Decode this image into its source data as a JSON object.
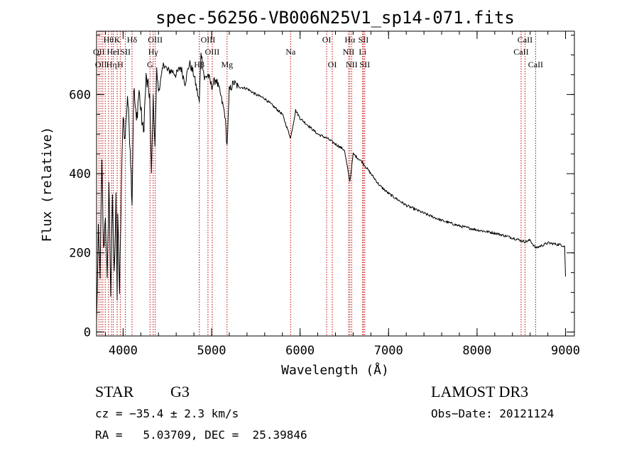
{
  "chart_data": {
    "type": "line",
    "title": "spec-56256-VB006N25V1_sp14-071.fits",
    "xlabel": "Wavelength (Å)",
    "ylabel": "Flux (relative)",
    "xlim": [
      3700,
      9100
    ],
    "ylim": [
      -10,
      760
    ],
    "xticks": [
      4000,
      5000,
      6000,
      7000,
      8000,
      9000
    ],
    "yticks": [
      0,
      200,
      400,
      600
    ],
    "line_color": "#000000",
    "marker_color": "#c00000",
    "series": [
      {
        "name": "flux",
        "x": [
          3700,
          3720,
          3740,
          3760,
          3780,
          3800,
          3820,
          3840,
          3860,
          3880,
          3900,
          3920,
          3933,
          3940,
          3960,
          3968,
          3980,
          4000,
          4020,
          4050,
          4080,
          4101,
          4120,
          4150,
          4180,
          4200,
          4230,
          4260,
          4300,
          4320,
          4340,
          4360,
          4380,
          4400,
          4430,
          4460,
          4500,
          4550,
          4600,
          4650,
          4700,
          4750,
          4800,
          4861,
          4880,
          4920,
          4960,
          5000,
          5050,
          5100,
          5150,
          5175,
          5200,
          5250,
          5300,
          5400,
          5500,
          5600,
          5700,
          5800,
          5893,
          5950,
          6000,
          6100,
          6200,
          6300,
          6400,
          6500,
          6563,
          6600,
          6700,
          6800,
          6900,
          7000,
          7200,
          7400,
          7600,
          7800,
          8000,
          8200,
          8400,
          8542,
          8600,
          8662,
          8800,
          8950,
          8990,
          9000
        ],
        "y": [
          20,
          250,
          150,
          420,
          200,
          300,
          120,
          380,
          100,
          330,
          140,
          360,
          80,
          300,
          100,
          200,
          350,
          560,
          480,
          600,
          470,
          330,
          620,
          530,
          610,
          560,
          500,
          640,
          600,
          400,
          590,
          470,
          660,
          610,
          640,
          680,
          660,
          660,
          650,
          670,
          630,
          680,
          650,
          580,
          710,
          640,
          650,
          620,
          640,
          600,
          550,
          470,
          610,
          630,
          620,
          615,
          600,
          590,
          570,
          550,
          490,
          560,
          540,
          520,
          500,
          490,
          475,
          460,
          380,
          450,
          430,
          400,
          370,
          350,
          320,
          300,
          282,
          268,
          258,
          250,
          238,
          228,
          232,
          212,
          225,
          220,
          217,
          140
        ]
      }
    ],
    "lines": [
      {
        "x": 3727,
        "labels": [
          "",
          "OII",
          ""
        ]
      },
      {
        "x": 3750,
        "labels": [
          "",
          "",
          "OII"
        ]
      },
      {
        "x": 3771,
        "labels": [
          "",
          "",
          ""
        ]
      },
      {
        "x": 3798,
        "labels": [
          "",
          "",
          ""
        ]
      },
      {
        "x": 3835,
        "labels": [
          "Hθ",
          "",
          ""
        ]
      },
      {
        "x": 3869,
        "labels": [
          "",
          "",
          "Hη"
        ]
      },
      {
        "x": 3889,
        "labels": [
          "",
          "HeI",
          ""
        ]
      },
      {
        "x": 3933,
        "labels": [
          "K",
          "",
          ""
        ]
      },
      {
        "x": 3968,
        "labels": [
          "",
          "",
          "H"
        ]
      },
      {
        "x": 4026,
        "labels": [
          "",
          "SII",
          ""
        ]
      },
      {
        "x": 4101,
        "labels": [
          "Hδ",
          "",
          ""
        ]
      },
      {
        "x": 4304,
        "labels": [
          "",
          "",
          "G"
        ]
      },
      {
        "x": 4340,
        "labels": [
          "",
          "Hγ",
          ""
        ]
      },
      {
        "x": 4363,
        "labels": [
          "OIII",
          "",
          ""
        ]
      },
      {
        "x": 4861,
        "labels": [
          "",
          "",
          "Hβ"
        ]
      },
      {
        "x": 4959,
        "labels": [
          "OIII",
          "",
          ""
        ]
      },
      {
        "x": 5007,
        "labels": [
          "",
          "OIII",
          ""
        ]
      },
      {
        "x": 5175,
        "labels": [
          "",
          "",
          "Mg"
        ]
      },
      {
        "x": 5893,
        "labels": [
          "",
          "Na",
          ""
        ]
      },
      {
        "x": 6300,
        "labels": [
          "OI",
          "",
          ""
        ]
      },
      {
        "x": 6364,
        "labels": [
          "",
          "",
          "OI"
        ]
      },
      {
        "x": 6548,
        "labels": [
          "",
          "NII",
          ""
        ]
      },
      {
        "x": 6563,
        "labels": [
          "Hα",
          "",
          ""
        ]
      },
      {
        "x": 6583,
        "labels": [
          "",
          "",
          "NII"
        ]
      },
      {
        "x": 6707,
        "labels": [
          "",
          "Li",
          ""
        ]
      },
      {
        "x": 6716,
        "labels": [
          "SII",
          "",
          ""
        ]
      },
      {
        "x": 6731,
        "labels": [
          "",
          "",
          "SII"
        ]
      },
      {
        "x": 8498,
        "labels": [
          "",
          "CaII",
          ""
        ]
      },
      {
        "x": 8542,
        "labels": [
          "CaII",
          "",
          ""
        ]
      },
      {
        "x": 8662,
        "labels": [
          "",
          "",
          "CaII"
        ]
      }
    ]
  },
  "info": {
    "object_class": "STAR",
    "subclass": "G3",
    "cz": "cz = −35.4 ± 2.3 km/s",
    "coords": "RA =   5.03709, DEC =  25.39846",
    "survey": "LAMOST DR3",
    "obs_date": "Obs−Date: 20121124"
  }
}
